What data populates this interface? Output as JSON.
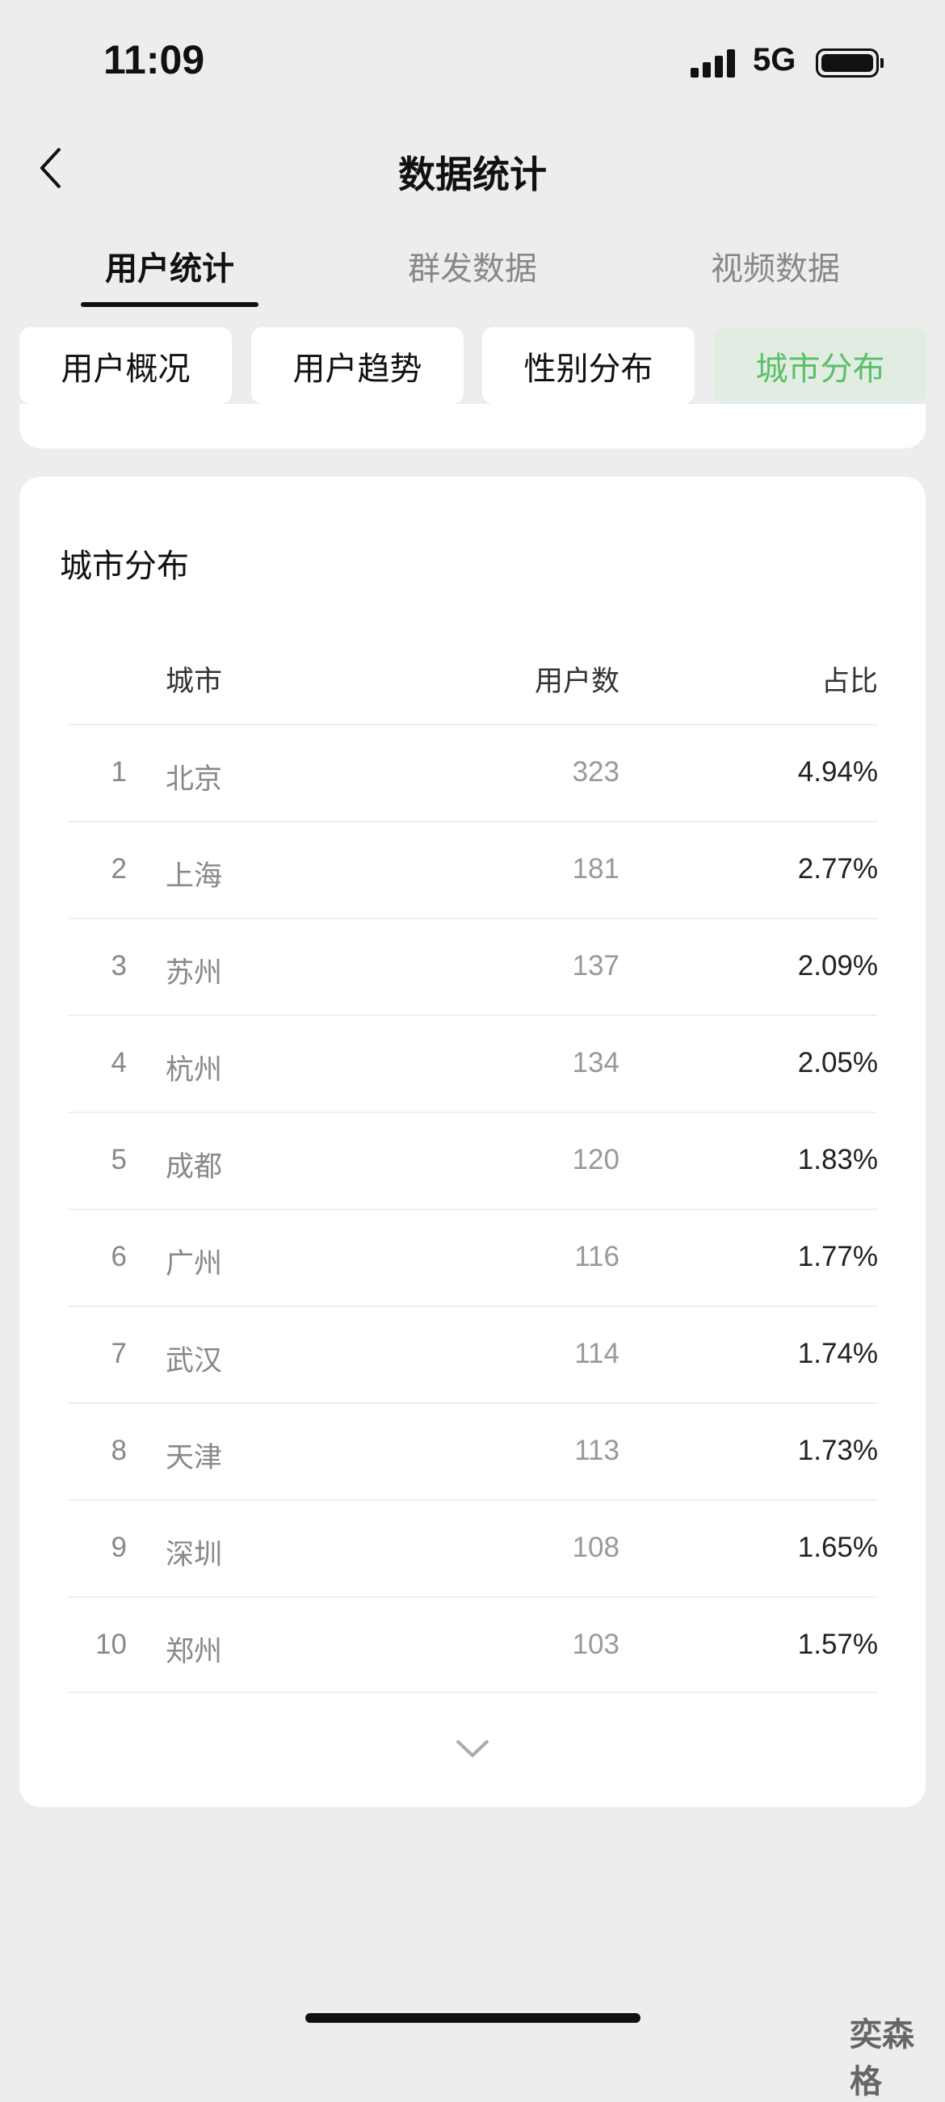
{
  "status": {
    "time": "11:09",
    "network": "5G"
  },
  "nav": {
    "title": "数据统计"
  },
  "tabs": [
    {
      "label": "用户统计",
      "active": true
    },
    {
      "label": "群发数据"
    },
    {
      "label": "视频数据"
    }
  ],
  "chips": [
    {
      "label": "用户概况"
    },
    {
      "label": "用户趋势"
    },
    {
      "label": "性别分布"
    },
    {
      "label": "城市分布",
      "active": true
    }
  ],
  "accent": "#5bbf6a",
  "card": {
    "title": "城市分布",
    "headers": {
      "city": "城市",
      "users": "用户数",
      "ratio": "占比"
    },
    "rows": [
      {
        "rank": "1",
        "city": "北京",
        "users": "323",
        "ratio": "4.94%"
      },
      {
        "rank": "2",
        "city": "上海",
        "users": "181",
        "ratio": "2.77%"
      },
      {
        "rank": "3",
        "city": "苏州",
        "users": "137",
        "ratio": "2.09%"
      },
      {
        "rank": "4",
        "city": "杭州",
        "users": "134",
        "ratio": "2.05%"
      },
      {
        "rank": "5",
        "city": "成都",
        "users": "120",
        "ratio": "1.83%"
      },
      {
        "rank": "6",
        "city": "广州",
        "users": "116",
        "ratio": "1.77%"
      },
      {
        "rank": "7",
        "city": "武汉",
        "users": "114",
        "ratio": "1.74%"
      },
      {
        "rank": "8",
        "city": "天津",
        "users": "113",
        "ratio": "1.73%"
      },
      {
        "rank": "9",
        "city": "深圳",
        "users": "108",
        "ratio": "1.65%"
      },
      {
        "rank": "10",
        "city": "郑州",
        "users": "103",
        "ratio": "1.57%"
      }
    ]
  },
  "watermark": "奕森格"
}
